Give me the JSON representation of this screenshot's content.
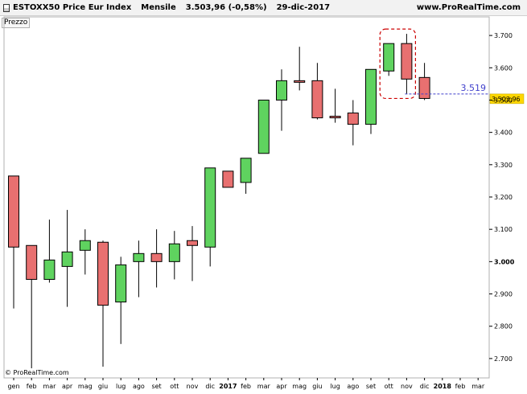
{
  "header": {
    "symbol": "ESTOXX50 Price Eur Index",
    "period": "Mensile",
    "last_change": "3.503,96 (-0,58%)",
    "date": "29-dic-2017",
    "site": "www.ProRealTime.com"
  },
  "price_tag": "Prezzo",
  "copyright": "© ProRealTime.com",
  "colors": {
    "up": "#5fd35f",
    "down": "#e87070",
    "candle_border": "#000000",
    "highlight_box": "#cc0000",
    "level_line": "#4040cc",
    "last_price_bg": "#ffd700"
  },
  "chart_data": {
    "type": "candlestick",
    "y_range": [
      2640,
      3760
    ],
    "y_ticks": [
      {
        "value": 2700,
        "label": "2.700"
      },
      {
        "value": 2800,
        "label": "2.800"
      },
      {
        "value": 2900,
        "label": "2.900"
      },
      {
        "value": 3000,
        "label": "3.000"
      },
      {
        "value": 3100,
        "label": "3.100"
      },
      {
        "value": 3200,
        "label": "3.200"
      },
      {
        "value": 3300,
        "label": "3.300"
      },
      {
        "value": 3400,
        "label": "3.400"
      },
      {
        "value": 3500,
        "label": "3.500"
      },
      {
        "value": 3600,
        "label": "3.600"
      },
      {
        "value": 3700,
        "label": "3.700"
      }
    ],
    "x_labels": [
      "gen",
      "feb",
      "mar",
      "apr",
      "mag",
      "giu",
      "lug",
      "ago",
      "set",
      "ott",
      "nov",
      "dic",
      "2017",
      "feb",
      "mar",
      "apr",
      "mag",
      "giu",
      "lug",
      "ago",
      "set",
      "ott",
      "nov",
      "dic",
      "2018",
      "feb",
      "mar"
    ],
    "x_bold": [
      12,
      24
    ],
    "candles": [
      {
        "o": 3265,
        "h": 3265,
        "l": 2855,
        "c": 3045
      },
      {
        "o": 3050,
        "h": 3050,
        "l": 2670,
        "c": 2945
      },
      {
        "o": 2945,
        "h": 3130,
        "l": 2935,
        "c": 3005
      },
      {
        "o": 2985,
        "h": 3160,
        "l": 2860,
        "c": 3030
      },
      {
        "o": 3035,
        "h": 3100,
        "l": 2960,
        "c": 3065
      },
      {
        "o": 3060,
        "h": 3065,
        "l": 2675,
        "c": 2865
      },
      {
        "o": 2875,
        "h": 3015,
        "l": 2745,
        "c": 2990
      },
      {
        "o": 3000,
        "h": 3065,
        "l": 2890,
        "c": 3025
      },
      {
        "o": 3025,
        "h": 3100,
        "l": 2920,
        "c": 3000
      },
      {
        "o": 3000,
        "h": 3095,
        "l": 2945,
        "c": 3055
      },
      {
        "o": 3065,
        "h": 3110,
        "l": 2940,
        "c": 3050
      },
      {
        "o": 3045,
        "h": 3290,
        "l": 2985,
        "c": 3290
      },
      {
        "o": 3280,
        "h": 3280,
        "l": 3230,
        "c": 3230
      },
      {
        "o": 3245,
        "h": 3320,
        "l": 3210,
        "c": 3320
      },
      {
        "o": 3335,
        "h": 3500,
        "l": 3335,
        "c": 3500
      },
      {
        "o": 3500,
        "h": 3595,
        "l": 3405,
        "c": 3560
      },
      {
        "o": 3560,
        "h": 3665,
        "l": 3530,
        "c": 3555
      },
      {
        "o": 3560,
        "h": 3615,
        "l": 3440,
        "c": 3445
      },
      {
        "o": 3450,
        "h": 3535,
        "l": 3430,
        "c": 3445
      },
      {
        "o": 3460,
        "h": 3500,
        "l": 3360,
        "c": 3425
      },
      {
        "o": 3425,
        "h": 3595,
        "l": 3395,
        "c": 3595
      },
      {
        "o": 3590,
        "h": 3675,
        "l": 3575,
        "c": 3675
      },
      {
        "o": 3675,
        "h": 3705,
        "l": 3520,
        "c": 3565
      },
      {
        "o": 3570,
        "h": 3615,
        "l": 3500,
        "c": 3505
      }
    ],
    "highlight_candles": [
      21,
      22
    ],
    "level": {
      "value": 3519,
      "label": "3.519"
    },
    "last_price": {
      "value": 3503.96,
      "label": "3.503,96"
    }
  }
}
